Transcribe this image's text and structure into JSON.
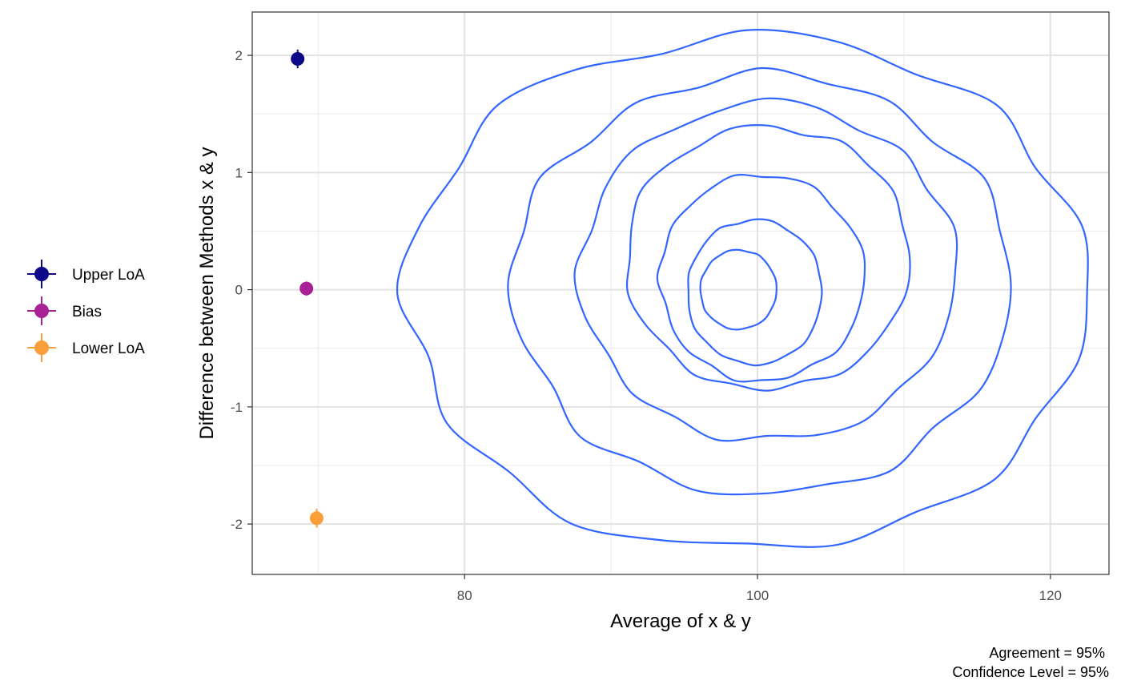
{
  "chart_data": {
    "type": "scatter",
    "xlabel": "Average of x & y",
    "ylabel": "Difference between Methods x & y",
    "xlim": [
      65.5,
      124.0
    ],
    "ylim": [
      -2.43,
      2.37
    ],
    "x_ticks": [
      80,
      100,
      120
    ],
    "y_ticks": [
      2,
      1,
      0,
      -1,
      -2
    ],
    "grid": true,
    "legend_position": "left",
    "legend": [
      {
        "label": "Upper LoA",
        "color": "#0d0887"
      },
      {
        "label": "Bias",
        "color": "#a82296"
      },
      {
        "label": "Lower LoA",
        "color": "#f89f3a"
      }
    ],
    "points": [
      {
        "name": "Upper LoA",
        "x": 68.6,
        "y": 1.97,
        "ci": [
          1.89,
          2.05
        ],
        "color": "#0d0887"
      },
      {
        "name": "Bias",
        "x": 69.2,
        "y": 0.01,
        "ci": [
          -0.05,
          0.07
        ],
        "color": "#a82296"
      },
      {
        "name": "Lower LoA",
        "x": 69.9,
        "y": -1.95,
        "ci": [
          -2.03,
          -1.87
        ],
        "color": "#f89f3a"
      }
    ],
    "density_contours": {
      "color": "#3366ff",
      "levels": [
        {
          "center": [
            99.3,
            -0.03
          ],
          "rx": 23.2,
          "ry": 2.18,
          "r": [
            1.0,
            1.02,
            0.98,
            1.04,
            0.99,
            1.02,
            1.03,
            0.97,
            1.01,
            1.04,
            0.98,
            1.0,
            1.03,
            0.97,
            1.02,
            0.99,
            1.04,
            1.0,
            0.98,
            1.02,
            0.99,
            1.03,
            0.98,
            1.01
          ]
        },
        {
          "center": [
            100.3,
            0.04
          ],
          "rx": 17.0,
          "ry": 1.78,
          "r": [
            1.0,
            0.99,
            1.03,
            0.97,
            1.02,
            1.0,
            1.04,
            0.98,
            1.01,
            0.97,
            1.03,
            0.99,
            1.02,
            1.0,
            0.97,
            1.03,
            0.98,
            1.02,
            1.0,
            0.99,
            1.03,
            0.97,
            1.01,
            1.0
          ]
        },
        {
          "center": [
            100.7,
            0.15
          ],
          "rx": 12.8,
          "ry": 1.44,
          "r": [
            1.0,
            1.03,
            0.98,
            1.02,
            0.97,
            1.01,
            1.03,
            0.99,
            0.98,
            1.02,
            1.0,
            0.97,
            1.03,
            1.01,
            0.98,
            1.02,
            0.99,
            1.03,
            0.97,
            1.0,
            1.02,
            0.98,
            1.01,
            1.0
          ]
        },
        {
          "center": [
            100.7,
            0.27
          ],
          "rx": 9.7,
          "ry": 1.12,
          "r": [
            1.0,
            0.98,
            1.02,
            1.0,
            1.03,
            0.97,
            1.01,
            1.02,
            0.98,
            1.0,
            1.03,
            0.99,
            0.97,
            1.02,
            1.0,
            0.98,
            1.03,
            0.99,
            1.01,
            0.97,
            1.02,
            1.0,
            0.99,
            1.01
          ]
        },
        {
          "center": [
            100.3,
            0.1
          ],
          "rx": 7.0,
          "ry": 0.88,
          "r": [
            1.0,
            1.02,
            0.99,
            0.97,
            1.02,
            1.0,
            0.98,
            1.03,
            1.0,
            0.99,
            1.01,
            0.98,
            1.02,
            0.97,
            1.0,
            1.01,
            0.98,
            1.03,
            0.99,
            1.0,
            0.97,
            1.02,
            1.0,
            0.99
          ]
        },
        {
          "center": [
            99.8,
            -0.02
          ],
          "rx": 4.6,
          "ry": 0.62,
          "r": [
            1.0,
            0.99,
            1.02,
            1.0,
            0.98,
            1.01,
            1.0,
            0.97,
            1.02,
            1.0,
            0.99,
            1.01,
            0.98,
            1.0,
            1.02,
            0.99,
            1.0,
            0.98,
            1.01,
            1.0,
            0.99,
            1.02,
            1.0,
            0.99
          ]
        },
        {
          "center": [
            98.7,
            0.0
          ],
          "rx": 2.6,
          "ry": 0.34,
          "r": [
            1.0,
            1.01,
            0.99,
            1.0,
            1.02,
            0.98,
            1.0,
            1.01,
            0.99,
            1.0,
            0.98,
            1.01,
            1.0,
            0.99,
            1.02,
            1.0,
            0.99,
            1.01,
            1.0,
            0.98,
            1.0,
            1.01,
            0.99,
            1.0
          ]
        }
      ]
    },
    "caption": [
      "Agreement = 95%",
      "Confidence Level = 95%"
    ]
  }
}
